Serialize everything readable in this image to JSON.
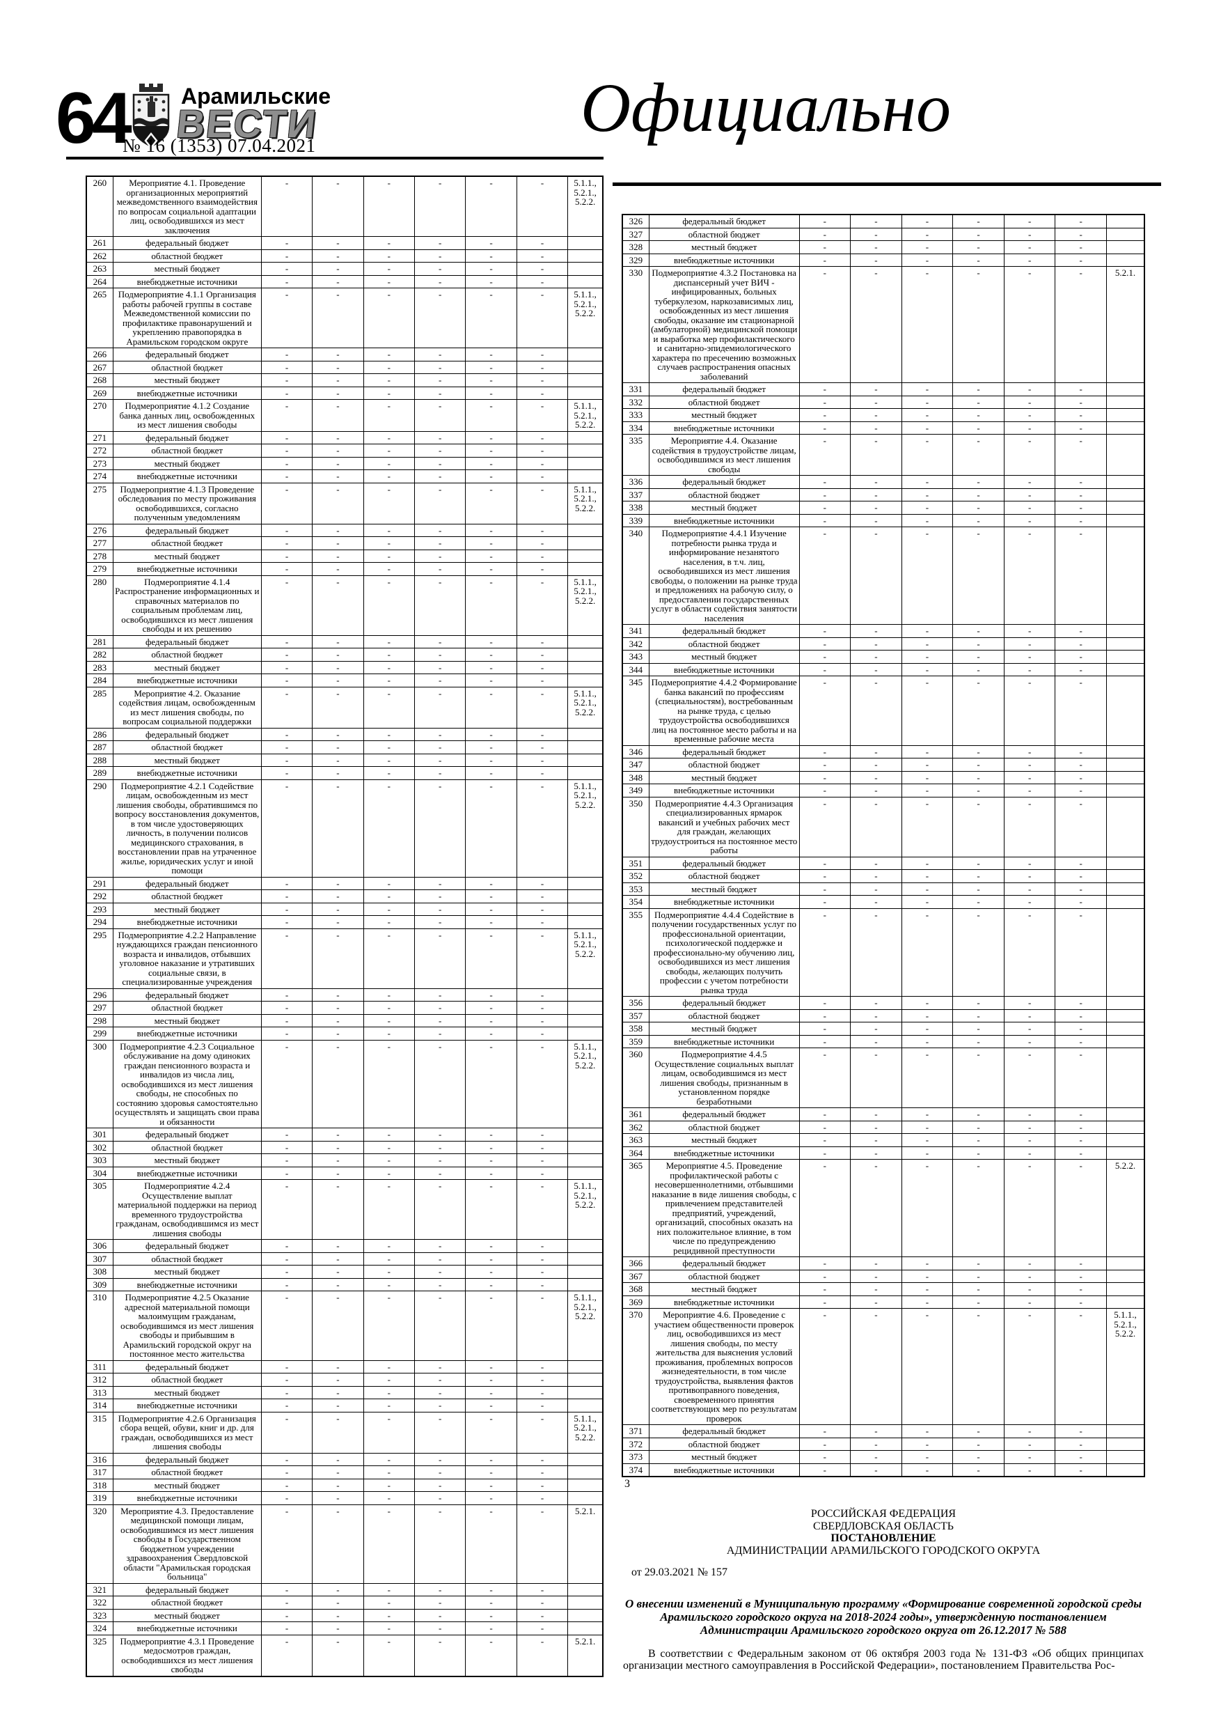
{
  "masthead": {
    "page_number": "64",
    "title_top": "Арамильские",
    "title_main": "ВЕСТИ",
    "issue": "№ 16 (1353) 07.04.2021",
    "crest_icon": "coat-of-arms-icon"
  },
  "section_heading": "Официально",
  "tables": {
    "dash": "-",
    "data_columns": 6
  },
  "left_table": {
    "rows": [
      [
        "260",
        "Мероприятие 4.1. Проведение организационных мероприятий межведомственного взаимодействия по вопросам социальной адаптации лиц, освободившихся из мест заключения",
        "5.1.1., 5.2.1., 5.2.2."
      ],
      [
        "261",
        "федеральный бюджет",
        ""
      ],
      [
        "262",
        "областной бюджет",
        ""
      ],
      [
        "263",
        "местный бюджет",
        ""
      ],
      [
        "264",
        "внебюджетные источники",
        ""
      ],
      [
        "265",
        "Подмероприятие 4.1.1 Организация работы рабочей группы в составе Межведомственной комиссии по профилактике правонарушений и укреплению правопорядка в Арамильском городском округе",
        "5.1.1., 5.2.1., 5.2.2."
      ],
      [
        "266",
        "федеральный бюджет",
        ""
      ],
      [
        "267",
        "областной бюджет",
        ""
      ],
      [
        "268",
        "местный бюджет",
        ""
      ],
      [
        "269",
        "внебюджетные источники",
        ""
      ],
      [
        "270",
        "Подмероприятие 4.1.2 Создание банка данных лиц, освобожденных из мест лишения свободы",
        "5.1.1., 5.2.1., 5.2.2."
      ],
      [
        "271",
        "федеральный бюджет",
        ""
      ],
      [
        "272",
        "областной бюджет",
        ""
      ],
      [
        "273",
        "местный бюджет",
        ""
      ],
      [
        "274",
        "внебюджетные источники",
        ""
      ],
      [
        "275",
        "Подмероприятие 4.1.3 Проведение обследования по месту проживания освободившихся, согласно полученным уведомлениям",
        "5.1.1., 5.2.1., 5.2.2."
      ],
      [
        "276",
        "федеральный бюджет",
        ""
      ],
      [
        "277",
        "областной бюджет",
        ""
      ],
      [
        "278",
        "местный бюджет",
        ""
      ],
      [
        "279",
        "внебюджетные источники",
        ""
      ],
      [
        "280",
        "Подмероприятие 4.1.4 Распространение информационных и справочных материалов по социальным проблемам лиц, освободившихся из мест лишения свободы и их решению",
        "5.1.1., 5.2.1., 5.2.2."
      ],
      [
        "281",
        "федеральный бюджет",
        ""
      ],
      [
        "282",
        "областной бюджет",
        ""
      ],
      [
        "283",
        "местный бюджет",
        ""
      ],
      [
        "284",
        "внебюджетные источники",
        ""
      ],
      [
        "285",
        "Мероприятие 4.2. Оказание содействия лицам, освобожденным из мест лишения свободы, по вопросам социальной поддержки",
        "5.1.1., 5.2.1., 5.2.2."
      ],
      [
        "286",
        "федеральный бюджет",
        ""
      ],
      [
        "287",
        "областной бюджет",
        ""
      ],
      [
        "288",
        "местный бюджет",
        ""
      ],
      [
        "289",
        "внебюджетные источники",
        ""
      ],
      [
        "290",
        "Подмероприятие 4.2.1 Содействие лицам, освобожденным из мест лишения свободы, обратившимся по вопросу восстановления документов, в том числе удостоверяющих личность, в получении полисов медицинского страхования, в восстановлении прав на утраченное жилье, юридических услуг и иной помощи",
        "5.1.1., 5.2.1., 5.2.2."
      ],
      [
        "291",
        "федеральный бюджет",
        ""
      ],
      [
        "292",
        "областной бюджет",
        ""
      ],
      [
        "293",
        "местный бюджет",
        ""
      ],
      [
        "294",
        "внебюджетные источники",
        ""
      ],
      [
        "295",
        "Подмероприятие 4.2.2 Направление нуждающихся граждан пенсионного возраста и инвалидов, отбывших уголовное наказание и утративших социальные связи, в специализированные учреждения",
        "5.1.1., 5.2.1., 5.2.2."
      ],
      [
        "296",
        "федеральный бюджет",
        ""
      ],
      [
        "297",
        "областной бюджет",
        ""
      ],
      [
        "298",
        "местный бюджет",
        ""
      ],
      [
        "299",
        "внебюджетные источники",
        ""
      ],
      [
        "300",
        "Подмероприятие 4.2.3 Социальное обслуживание на дому одиноких граждан пенсионного возраста и инвалидов из числа лиц, освободившихся из мест лишения свободы, не способных по состоянию здоровья самостоятельно осуществлять и защищать свои права и обязанности",
        "5.1.1., 5.2.1., 5.2.2."
      ],
      [
        "301",
        "федеральный бюджет",
        ""
      ],
      [
        "302",
        "областной бюджет",
        ""
      ],
      [
        "303",
        "местный бюджет",
        ""
      ],
      [
        "304",
        "внебюджетные источники",
        ""
      ],
      [
        "305",
        "Подмероприятие 4.2.4 Осуществление выплат материальной поддержки на период временного трудоустройства гражданам, освободившимся из мест лишения свободы",
        "5.1.1., 5.2.1., 5.2.2."
      ],
      [
        "306",
        "федеральный бюджет",
        ""
      ],
      [
        "307",
        "областной бюджет",
        ""
      ],
      [
        "308",
        "местный бюджет",
        ""
      ],
      [
        "309",
        "внебюджетные источники",
        ""
      ],
      [
        "310",
        "Подмероприятие 4.2.5 Оказание адресной материальной помощи малоимущим гражданам, освободившимся из мест лишения свободы и прибывшим в Арамильский городской округ на постоянное место жительства",
        "5.1.1., 5.2.1., 5.2.2."
      ],
      [
        "311",
        "федеральный бюджет",
        ""
      ],
      [
        "312",
        "областной бюджет",
        ""
      ],
      [
        "313",
        "местный бюджет",
        ""
      ],
      [
        "314",
        "внебюджетные источники",
        ""
      ],
      [
        "315",
        "Подмероприятие 4.2.6 Организация сбора вещей, обуви, книг и др.  для граждан, освободившихся из мест лишения свободы",
        "5.1.1., 5.2.1., 5.2.2."
      ],
      [
        "316",
        "федеральный бюджет",
        ""
      ],
      [
        "317",
        "областной бюджет",
        ""
      ],
      [
        "318",
        "местный бюджет",
        ""
      ],
      [
        "319",
        "внебюджетные источники",
        ""
      ],
      [
        "320",
        "Мероприятие 4.3. Предоставление медицинской помощи лицам, освободившимся из мест лишения свободы в Государственном бюджетном учреждении здравоохранения Свердловской области \"Арамильская городская больница\"",
        "5.2.1."
      ],
      [
        "321",
        "федеральный бюджет",
        ""
      ],
      [
        "322",
        "областной бюджет",
        ""
      ],
      [
        "323",
        "местный бюджет",
        ""
      ],
      [
        "324",
        "внебюджетные источники",
        ""
      ],
      [
        "325",
        "Подмероприятие 4.3.1 Проведение медосмотров граждан, освободившихся из мест лишения свободы",
        "5.2.1."
      ]
    ]
  },
  "right_table": {
    "footnote": "3",
    "rows": [
      [
        "326",
        "федеральный бюджет",
        ""
      ],
      [
        "327",
        "областной бюджет",
        ""
      ],
      [
        "328",
        "местный бюджет",
        ""
      ],
      [
        "329",
        "внебюджетные источники",
        ""
      ],
      [
        "330",
        "Подмероприятие 4.3.2 Постановка на диспансерный учет ВИЧ - инфицированных, больных туберкулезом, наркозависимых лиц, освобожденных из мест лишения свободы, оказание им стационарной (амбулаторной) медицинской помощи и выработка мер профилактического и санитарно-эпидемиологического характера по пресечению возможных случаев распространения опасных заболеваний",
        "5.2.1."
      ],
      [
        "331",
        "федеральный бюджет",
        ""
      ],
      [
        "332",
        "областной бюджет",
        ""
      ],
      [
        "333",
        "местный бюджет",
        ""
      ],
      [
        "334",
        "внебюджетные источники",
        ""
      ],
      [
        "335",
        "Мероприятие 4.4. Оказание содействия в трудоустройстве лицам, освободившимся из мест лишения свободы",
        ""
      ],
      [
        "336",
        "федеральный бюджет",
        ""
      ],
      [
        "337",
        "областной бюджет",
        ""
      ],
      [
        "338",
        "местный бюджет",
        ""
      ],
      [
        "339",
        "внебюджетные источники",
        ""
      ],
      [
        "340",
        "Подмероприятие 4.4.1 Изучение потребности рынка труда и информирование незанятого населения, в т.ч. лиц, освободившихся из мест лишения свободы, о положении на рынке труда и предложениях на рабочую силу, о предоставлении государственных услуг в области содействия занятости населения",
        ""
      ],
      [
        "341",
        "федеральный бюджет",
        ""
      ],
      [
        "342",
        "областной бюджет",
        ""
      ],
      [
        "343",
        "местный бюджет",
        ""
      ],
      [
        "344",
        "внебюджетные источники",
        ""
      ],
      [
        "345",
        "Подмероприятие 4.4.2 Формирование банка вакансий по профессиям (специальностям), востребованным на рынке труда, с целью трудоустройства освободившихся лиц на постоянное место работы и на временные рабочие места",
        ""
      ],
      [
        "346",
        "федеральный бюджет",
        ""
      ],
      [
        "347",
        "областной бюджет",
        ""
      ],
      [
        "348",
        "местный бюджет",
        ""
      ],
      [
        "349",
        "внебюджетные источники",
        ""
      ],
      [
        "350",
        "Подмероприятие 4.4.3 Организация специализированных ярмарок вакансий и учебных рабочих мест для граждан, желающих трудоустроиться на постоянное место работы",
        ""
      ],
      [
        "351",
        "федеральный бюджет",
        ""
      ],
      [
        "352",
        "областной бюджет",
        ""
      ],
      [
        "353",
        "местный бюджет",
        ""
      ],
      [
        "354",
        "внебюджетные источники",
        ""
      ],
      [
        "355",
        "Подмероприятие 4.4.4 Содействие в получении государственных услуг по профессиональной ориентации, психологической поддержке и профессионально-му обучению лиц, освободившихся из мест лишения свободы, желающих получить профессии с учетом потребности рынка труда",
        ""
      ],
      [
        "356",
        "федеральный бюджет",
        ""
      ],
      [
        "357",
        "областной бюджет",
        ""
      ],
      [
        "358",
        "местный бюджет",
        ""
      ],
      [
        "359",
        "внебюджетные источники",
        ""
      ],
      [
        "360",
        "Подмероприятие 4.4.5 Осуществление социальных выплат лицам, освободившимся из мест лишения свободы, признанным в установленном порядке безработными",
        ""
      ],
      [
        "361",
        "федеральный бюджет",
        ""
      ],
      [
        "362",
        "областной бюджет",
        ""
      ],
      [
        "363",
        "местный бюджет",
        ""
      ],
      [
        "364",
        "внебюджетные источники",
        ""
      ],
      [
        "365",
        "Мероприятие 4.5. Проведение профилактической работы с несовершеннолетними, отбывшими наказание в виде лишения свободы, с привлечением представителей предприятий, учреждений, организаций, способных оказать на них положительное влияние, в том числе по предупреждению рецидивной преступности",
        "5.2.2."
      ],
      [
        "366",
        "федеральный бюджет",
        ""
      ],
      [
        "367",
        "областной бюджет",
        ""
      ],
      [
        "368",
        "местный бюджет",
        ""
      ],
      [
        "369",
        "внебюджетные источники",
        ""
      ],
      [
        "370",
        "Мероприятие 4.6. Проведение с участием общественности проверок лиц, освободившихся из мест лишения свободы, по месту жительства для выяснения условий проживания, проблемных вопросов жизнедеятельности, в том числе трудоустройства, выявления фактов противоправного поведения, своевременного принятия соответствующих мер по результатам проверок",
        "5.1.1., 5.2.1., 5.2.2."
      ],
      [
        "371",
        "федеральный бюджет",
        ""
      ],
      [
        "372",
        "областной бюджет",
        ""
      ],
      [
        "373",
        "местный бюджет",
        ""
      ],
      [
        "374",
        "внебюджетные источники",
        ""
      ]
    ]
  },
  "decree": {
    "country": "РОССИЙСКАЯ ФЕДЕРАЦИЯ",
    "region": "СВЕРДЛОВСКАЯ ОБЛАСТЬ",
    "doc_type": "ПОСТАНОВЛЕНИЕ",
    "authority": "АДМИНИСТРАЦИИ АРАМИЛЬСКОГО ГОРОДСКОГО ОКРУГА",
    "date_line": "от 29.03.2021 № 157",
    "title": "О внесении изменений в Муниципальную программу «Формирование современной городской среды Арамильского городского округа на 2018-2024 годы», утвержденную постановлением Администрации Арамильского городского округа от 26.12.2017 № 588",
    "body": "В соответствии с Федеральным законом от 06 октября 2003 года № 131-ФЗ «Об общих принципах организации местного самоуправления в Российской Федерации», постановлением Правительства Рос-"
  }
}
